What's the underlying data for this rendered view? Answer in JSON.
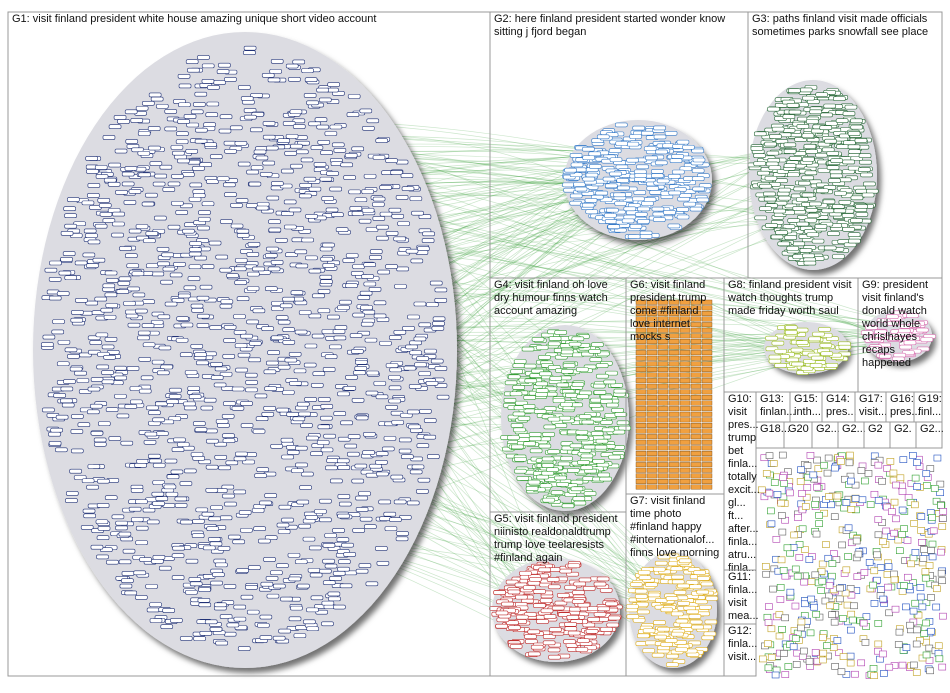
{
  "groups": [
    {
      "lines": [
        "G1: visit finland president white house amazing unique short video account"
      ]
    },
    {
      "lines": [
        "G2: here finland president started wonder know",
        "sitting j fjord began"
      ]
    },
    {
      "lines": [
        "G3: paths finland visit made officials",
        "sometimes parks snowfall see place"
      ]
    },
    {
      "lines": [
        "G4: visit finland oh love",
        "dry humour finns watch",
        "account amazing"
      ]
    },
    {
      "lines": [
        "G6: visit finland",
        "president trump",
        "come #finland",
        "love internet",
        "mocks s"
      ]
    },
    {
      "lines": [
        "G8: finland president visit",
        "watch thoughts trump",
        "made friday worth saul"
      ]
    },
    {
      "lines": [
        "G9: president",
        "visit finland's",
        "donald watch",
        "world whole",
        "chrislhayes",
        "recaps",
        "happened"
      ]
    },
    {
      "lines": [
        "G5: visit finland president",
        "niinisto realdonaldtrump",
        "trump love teelaresists",
        "#finland again"
      ]
    },
    {
      "lines": [
        "G7: visit finland",
        "time photo",
        "#finland happy",
        "#internationalof...",
        "finns love morning"
      ]
    },
    {
      "lines": [
        "G10:",
        "visit",
        "pres...",
        "trump",
        "bet",
        "finla...",
        "totally",
        "excit...",
        "gl...",
        "ft...",
        "after...",
        "finla...",
        "atru...",
        "finla..."
      ]
    },
    {
      "lines": [
        "G11:",
        "finla...",
        "visit",
        "mea..."
      ]
    },
    {
      "lines": [
        "G12:",
        "finla...",
        "visit..."
      ]
    },
    {
      "lines": [
        "G13:",
        "finlan..."
      ]
    },
    {
      "lines": [
        "G15:",
        "inth..."
      ]
    },
    {
      "lines": [
        "G14:",
        "pres..."
      ]
    },
    {
      "lines": [
        "G17:",
        "visit..."
      ]
    },
    {
      "lines": [
        "G16:",
        "pres..."
      ]
    },
    {
      "lines": [
        "G19:",
        "finl..."
      ]
    },
    {
      "lines": [
        "G18..."
      ]
    },
    {
      "lines": [
        "G20"
      ]
    },
    {
      "lines": [
        "G2..."
      ]
    },
    {
      "lines": [
        "G2..."
      ]
    },
    {
      "lines": [
        "G2"
      ]
    },
    {
      "lines": [
        "G2."
      ]
    },
    {
      "lines": [
        "G2..."
      ]
    }
  ]
}
